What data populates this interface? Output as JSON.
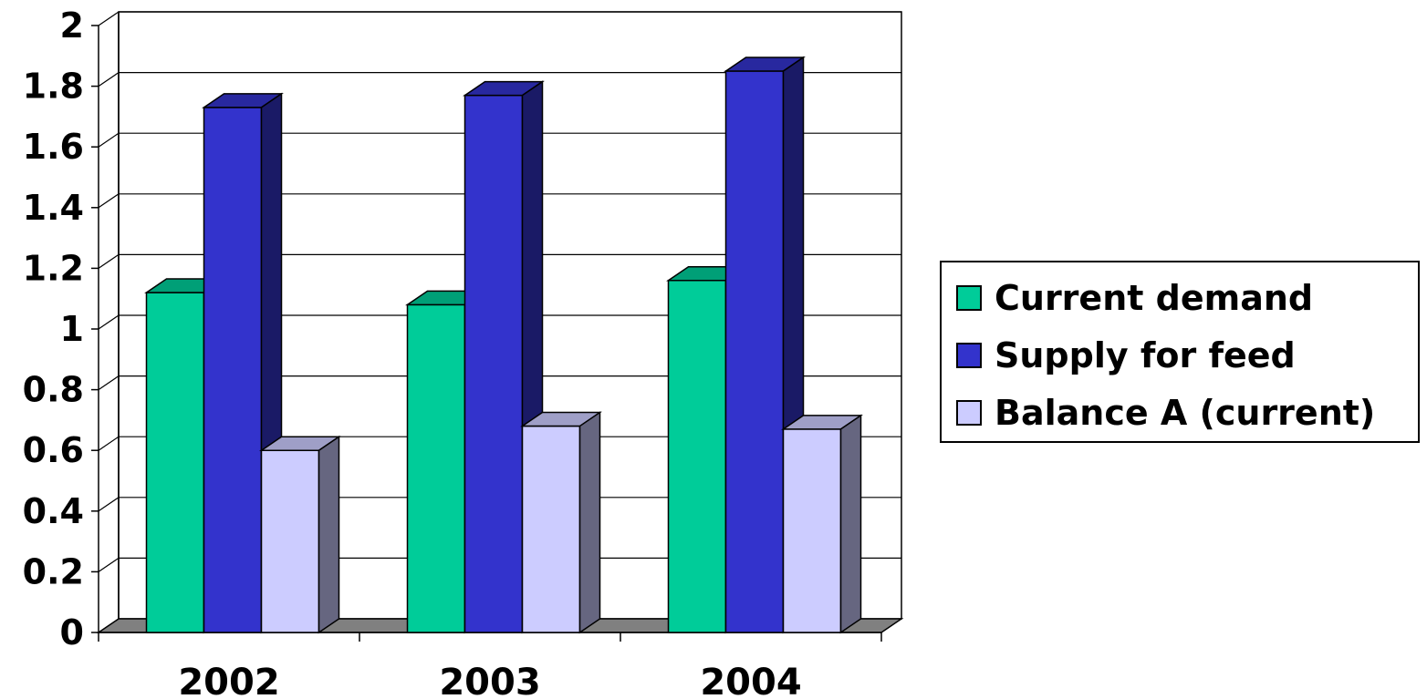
{
  "chart_data": {
    "type": "bar",
    "categories": [
      "2002",
      "2003",
      "2004"
    ],
    "series": [
      {
        "name": "Current demand",
        "values": [
          1.12,
          1.08,
          1.16
        ],
        "color": "#00CC99"
      },
      {
        "name": "Supply for feed",
        "values": [
          1.73,
          1.77,
          1.85
        ],
        "color": "#3333CC"
      },
      {
        "name": "Balance A (current)",
        "values": [
          0.6,
          0.68,
          0.67
        ],
        "color": "#CCCCFF"
      }
    ],
    "y_ticks": [
      "0",
      "0.2",
      "0.4",
      "0.6",
      "0.8",
      "1",
      "1.2",
      "1.4",
      "1.6",
      "1.8",
      "2"
    ],
    "ylim": [
      0,
      2
    ],
    "grid": true,
    "legend_position": "right",
    "style": "3d-clustered-column"
  }
}
